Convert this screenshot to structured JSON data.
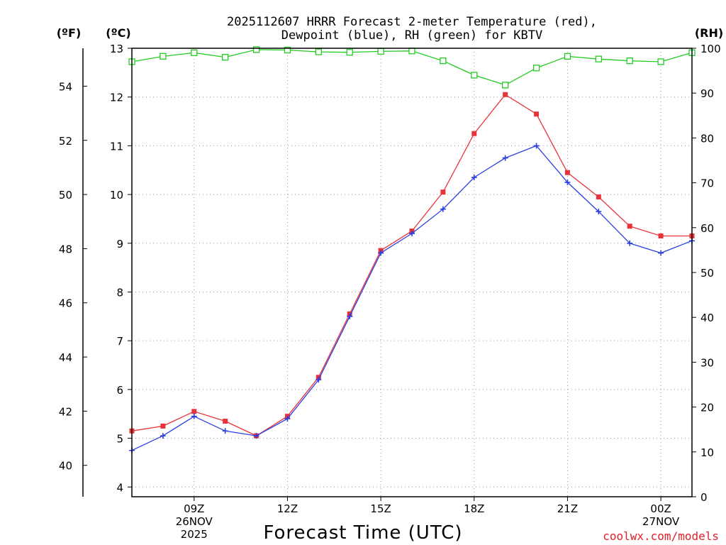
{
  "chart_data": {
    "type": "line",
    "title_line1": "2025112607 HRRR Forecast 2-meter Temperature (red),",
    "title_line2": "Dewpoint (blue), RH (green) for KBTV",
    "xlabel": "Forecast Time (UTC)",
    "credit": "coolwx.com/models",
    "unit_labels": {
      "fahrenheit": "(ºF)",
      "celsius": "(ºC)",
      "rh": "(RH)"
    },
    "x_hours": [
      7,
      8,
      9,
      10,
      11,
      12,
      13,
      14,
      15,
      16,
      17,
      18,
      19,
      20,
      21,
      22,
      23,
      24,
      25
    ],
    "xlim": [
      7,
      25
    ],
    "x_ticks": [
      {
        "hour": 9,
        "labels": [
          "09Z",
          "26NOV",
          "2025"
        ]
      },
      {
        "hour": 12,
        "labels": [
          "12Z"
        ]
      },
      {
        "hour": 15,
        "labels": [
          "15Z"
        ]
      },
      {
        "hour": 18,
        "labels": [
          "18Z"
        ]
      },
      {
        "hour": 21,
        "labels": [
          "21Z"
        ]
      },
      {
        "hour": 24,
        "labels": [
          "00Z",
          "27NOV"
        ]
      }
    ],
    "celsius_axis": {
      "min": 3.8,
      "max": 13,
      "ticks": [
        4,
        5,
        6,
        7,
        8,
        9,
        10,
        11,
        12,
        13
      ]
    },
    "fahrenheit_axis": {
      "ticks": [
        40,
        42,
        44,
        46,
        48,
        50,
        52,
        54
      ]
    },
    "rh_axis": {
      "min": 0,
      "max": 100,
      "ticks": [
        0,
        10,
        20,
        30,
        40,
        50,
        60,
        70,
        80,
        90,
        100
      ]
    },
    "series": [
      {
        "name": "Temperature",
        "axis": "celsius",
        "color": "#e8333a",
        "marker": "filled-square",
        "values": [
          5.15,
          5.25,
          5.55,
          5.35,
          5.05,
          5.45,
          6.25,
          7.55,
          8.85,
          9.25,
          10.05,
          11.25,
          12.05,
          11.65,
          10.45,
          9.95,
          9.35,
          9.15,
          9.15
        ]
      },
      {
        "name": "Dewpoint",
        "axis": "celsius",
        "color": "#2a3fe0",
        "marker": "plus",
        "values": [
          4.75,
          5.05,
          5.45,
          5.15,
          5.05,
          5.4,
          6.2,
          7.5,
          8.8,
          9.2,
          9.7,
          10.35,
          10.75,
          11.0,
          10.25,
          9.65,
          9.0,
          8.8,
          9.05
        ]
      },
      {
        "name": "RH",
        "axis": "rh",
        "color": "#22cc22",
        "marker": "open-square",
        "values": [
          97,
          98.2,
          99,
          98,
          99.7,
          99.6,
          99.2,
          99.1,
          99.3,
          99.4,
          97.2,
          94,
          91.8,
          95.6,
          98.2,
          97.6,
          97.2,
          97,
          99
        ]
      }
    ]
  }
}
